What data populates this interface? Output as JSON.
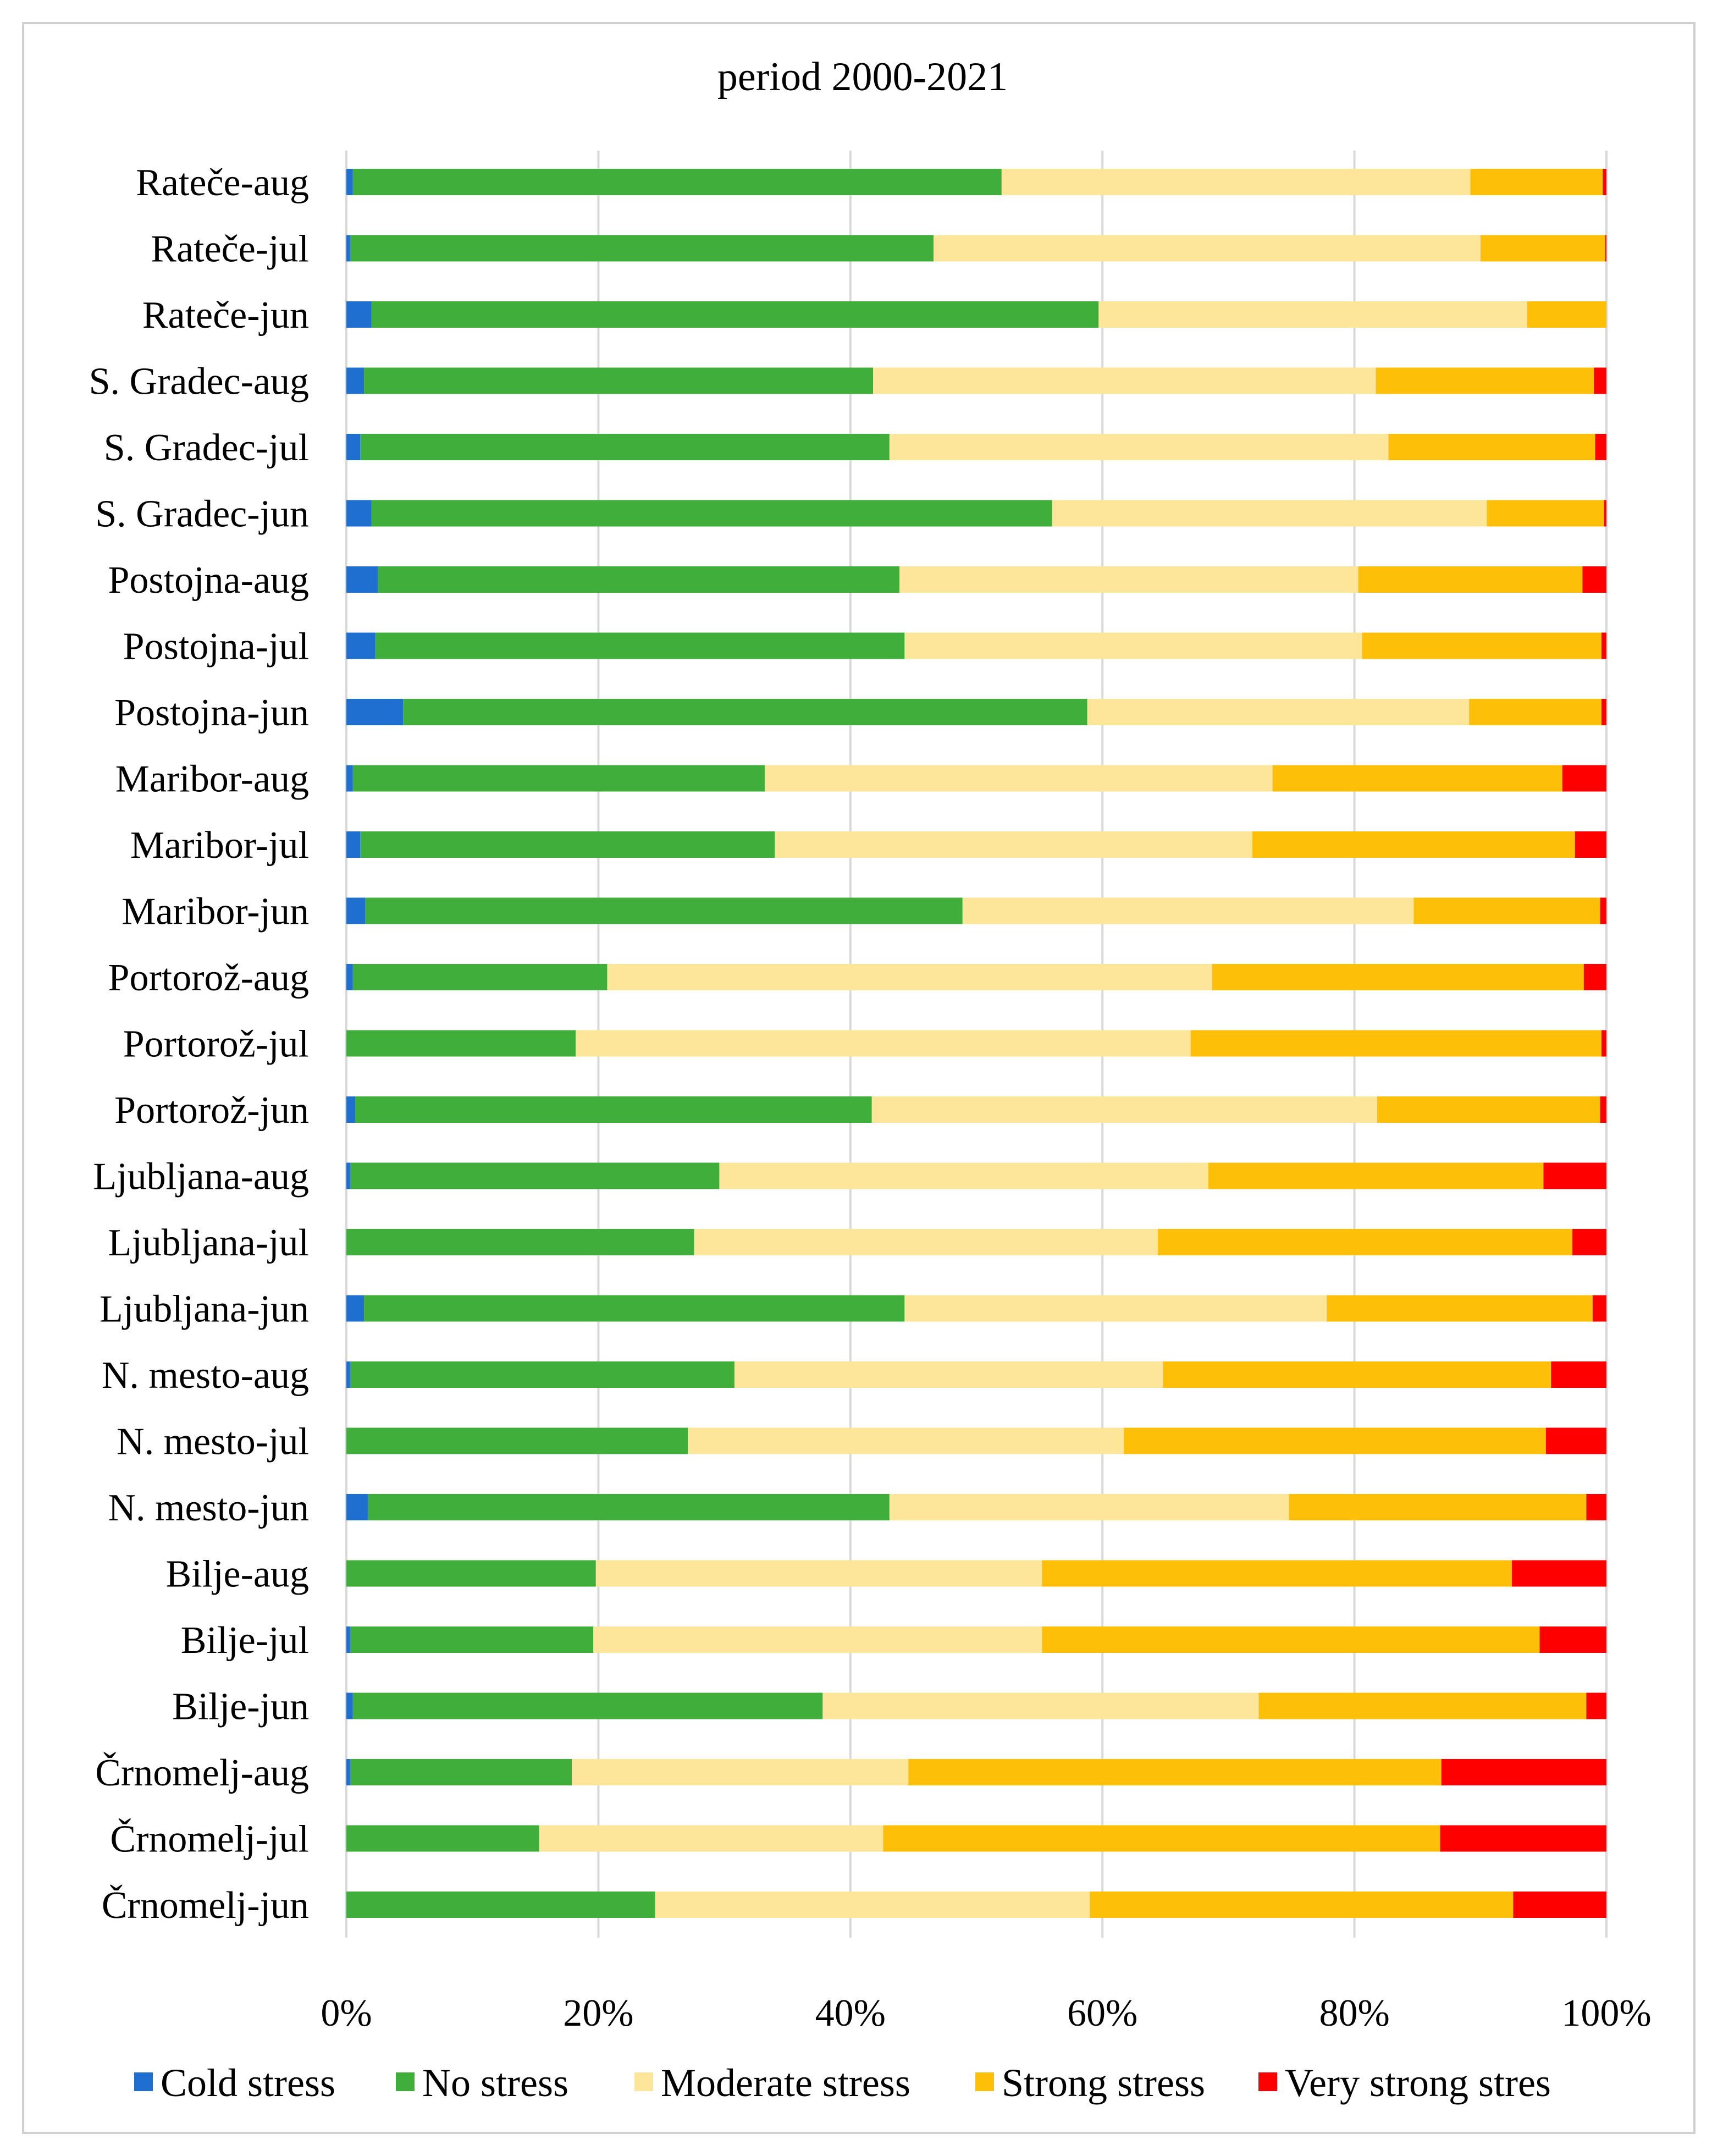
{
  "chart_data": {
    "type": "bar",
    "orientation": "horizontal",
    "stacked": "percent",
    "title": "period 2000-2021",
    "xlabel": "",
    "ylabel": "",
    "xlim": [
      0,
      100
    ],
    "x_ticks": [
      "0%",
      "20%",
      "40%",
      "60%",
      "80%",
      "100%"
    ],
    "grid": true,
    "legend_position": "bottom",
    "categories": [
      "Rateče-aug",
      "Rateče-jul",
      "Rateče-jun",
      "S. Gradec-aug",
      "S. Gradec-jul",
      "S. Gradec-jun",
      "Postojna-aug",
      "Postojna-jul",
      "Postojna-jun",
      "Maribor-aug",
      "Maribor-jul",
      "Maribor-jun",
      "Portorož-aug",
      "Portorož-jul",
      "Portorož-jun",
      "Ljubljana-aug",
      "Ljubljana-jul",
      "Ljubljana-jun",
      "N. mesto-aug",
      "N. mesto-jul",
      "N. mesto-jun",
      "Bilje-aug",
      "Bilje-jul",
      "Bilje-jun",
      "Črnomelj-aug",
      "Črnomelj-jul",
      "Črnomelj-jun"
    ],
    "series": [
      {
        "name": "Cold stress",
        "color": "#1f6fd1",
        "values": [
          0.5,
          0.3,
          2.0,
          1.4,
          1.1,
          2.0,
          2.5,
          2.3,
          4.5,
          0.5,
          1.1,
          1.5,
          0.5,
          0.0,
          0.7,
          0.3,
          0.0,
          1.4,
          0.3,
          0.0,
          1.7,
          0.0,
          0.3,
          0.5,
          0.3,
          0.0,
          0.0
        ]
      },
      {
        "name": "No stress",
        "color": "#3fae3a",
        "values": [
          51.5,
          46.3,
          57.7,
          40.4,
          42.0,
          54.0,
          41.4,
          42.0,
          54.3,
          32.7,
          32.9,
          47.4,
          20.2,
          18.2,
          41.0,
          29.3,
          27.6,
          42.9,
          30.5,
          27.1,
          41.4,
          19.8,
          19.3,
          37.3,
          17.6,
          15.3,
          24.5
        ]
      },
      {
        "name": "Moderate stress",
        "color": "#fde59a",
        "values": [
          37.2,
          43.4,
          34.0,
          39.9,
          39.6,
          34.5,
          36.4,
          36.3,
          30.3,
          40.3,
          37.9,
          35.8,
          48.0,
          48.8,
          40.1,
          38.8,
          36.8,
          33.5,
          34.0,
          34.6,
          31.7,
          35.4,
          35.6,
          34.6,
          26.7,
          27.3,
          34.5
        ]
      },
      {
        "name": "Strong stress",
        "color": "#fdbf07",
        "values": [
          10.5,
          9.9,
          6.3,
          17.3,
          16.4,
          9.3,
          17.8,
          19.0,
          10.5,
          23.0,
          25.6,
          14.8,
          29.5,
          32.6,
          17.7,
          26.6,
          32.9,
          21.1,
          30.8,
          33.5,
          23.6,
          37.3,
          39.5,
          26.0,
          42.3,
          44.2,
          33.6
        ]
      },
      {
        "name": "Very strong stres",
        "color": "#fe0000",
        "values": [
          0.3,
          0.1,
          0.0,
          1.0,
          0.9,
          0.2,
          1.9,
          0.4,
          0.4,
          3.5,
          2.5,
          0.5,
          1.8,
          0.4,
          0.5,
          5.0,
          2.7,
          1.1,
          4.4,
          4.8,
          1.6,
          7.5,
          5.3,
          1.6,
          13.1,
          13.2,
          7.4
        ]
      }
    ]
  }
}
